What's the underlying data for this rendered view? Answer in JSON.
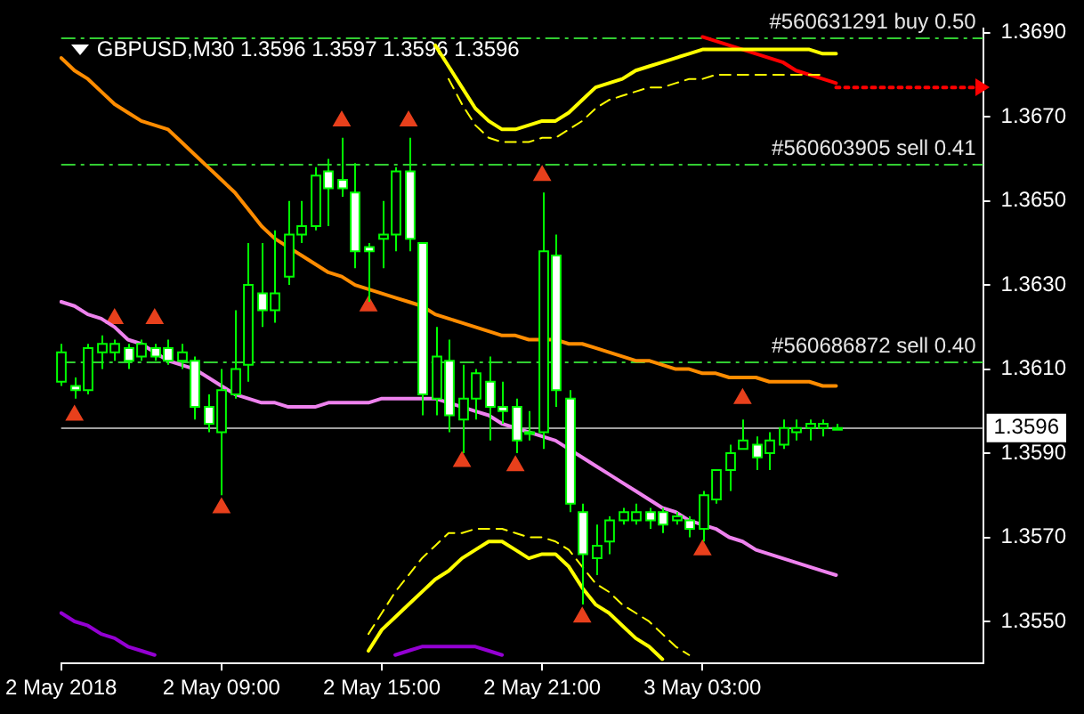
{
  "chart_data": {
    "type": "candlestick",
    "title": "GBPUSD,M30 1.3596 1.3597 1.3596 1.3596",
    "categories": [
      "2 May 2018",
      null,
      null,
      null,
      null,
      null,
      null,
      null,
      null,
      null,
      null,
      null,
      "2 May 09:00",
      null,
      null,
      null,
      null,
      null,
      null,
      null,
      null,
      null,
      null,
      null,
      "2 May 15:00",
      null,
      null,
      null,
      null,
      null,
      null,
      null,
      null,
      null,
      null,
      null,
      "2 May 21:00",
      null,
      null,
      null,
      null,
      null,
      null,
      null,
      null,
      null,
      null,
      null,
      "3 May 03:00",
      null,
      null,
      null,
      null,
      null,
      null,
      null,
      null,
      null,
      null,
      null,
      null,
      null,
      null,
      null,
      null,
      null,
      null,
      null,
      null,
      null
    ],
    "ohlc": [
      [
        1.3607,
        1.3616,
        1.3606,
        1.3614
      ],
      [
        1.3606,
        1.3608,
        1.3603,
        1.3605
      ],
      [
        1.3605,
        1.3616,
        1.3604,
        1.3615
      ],
      [
        1.3614,
        1.3618,
        1.361,
        1.3616
      ],
      [
        1.3614,
        1.3617,
        1.3612,
        1.3616
      ],
      [
        1.3615,
        1.3616,
        1.361,
        1.3612
      ],
      [
        1.3613,
        1.3617,
        1.3612,
        1.3616
      ],
      [
        1.3615,
        1.3616,
        1.3612,
        1.3613
      ],
      [
        1.3615,
        1.3617,
        1.3611,
        1.3612
      ],
      [
        1.3612,
        1.3616,
        1.361,
        1.3614
      ],
      [
        1.3612,
        1.3613,
        1.3598,
        1.3601
      ],
      [
        1.3601,
        1.3604,
        1.3595,
        1.3597
      ],
      [
        1.3595,
        1.361,
        1.358,
        1.3605
      ],
      [
        1.3604,
        1.3624,
        1.3603,
        1.361
      ],
      [
        1.3611,
        1.364,
        1.3607,
        1.363
      ],
      [
        1.3628,
        1.364,
        1.362,
        1.3624
      ],
      [
        1.3624,
        1.3643,
        1.3621,
        1.3628
      ],
      [
        1.3632,
        1.365,
        1.363,
        1.3642
      ],
      [
        1.3642,
        1.365,
        1.364,
        1.3644
      ],
      [
        1.3644,
        1.3658,
        1.3643,
        1.3656
      ],
      [
        1.3657,
        1.366,
        1.3644,
        1.3653
      ],
      [
        1.3655,
        1.3665,
        1.3651,
        1.3653
      ],
      [
        1.3652,
        1.3659,
        1.3634,
        1.3638
      ],
      [
        1.3639,
        1.364,
        1.3626,
        1.3638
      ],
      [
        1.3641,
        1.365,
        1.3634,
        1.3642
      ],
      [
        1.3642,
        1.3658,
        1.3638,
        1.3657
      ],
      [
        1.3657,
        1.3665,
        1.3638,
        1.3641
      ],
      [
        1.364,
        1.364,
        1.3599,
        1.3604
      ],
      [
        1.3603,
        1.362,
        1.3599,
        1.3613
      ],
      [
        1.3612,
        1.3617,
        1.3595,
        1.3599
      ],
      [
        1.3598,
        1.3611,
        1.359,
        1.3603
      ],
      [
        1.3603,
        1.361,
        1.3598,
        1.3609
      ],
      [
        1.3607,
        1.3613,
        1.3593,
        1.3601
      ],
      [
        1.3601,
        1.3607,
        1.3597,
        1.36
      ],
      [
        1.3601,
        1.3603,
        1.359,
        1.3593
      ],
      [
        1.3595,
        1.36,
        1.3593,
        1.3595
      ],
      [
        1.3595,
        1.3652,
        1.3591,
        1.3638
      ],
      [
        1.3637,
        1.3642,
        1.3601,
        1.3605
      ],
      [
        1.3603,
        1.3605,
        1.3576,
        1.3578
      ],
      [
        1.3576,
        1.3578,
        1.3554,
        1.3566
      ],
      [
        1.3565,
        1.3573,
        1.3561,
        1.3568
      ],
      [
        1.3569,
        1.3575,
        1.3566,
        1.3574
      ],
      [
        1.3574,
        1.3577,
        1.3573,
        1.3576
      ],
      [
        1.3574,
        1.3578,
        1.3573,
        1.3576
      ],
      [
        1.3576,
        1.3577,
        1.3572,
        1.3574
      ],
      [
        1.3576,
        1.3577,
        1.3571,
        1.3573
      ],
      [
        1.3574,
        1.3576,
        1.3573,
        1.3575
      ],
      [
        1.3574,
        1.3575,
        1.357,
        1.3572
      ],
      [
        1.3572,
        1.3581,
        1.3569,
        1.358
      ],
      [
        1.3579,
        1.3586,
        1.3578,
        1.3586
      ],
      [
        1.3586,
        1.3592,
        1.3581,
        1.359
      ],
      [
        1.3591,
        1.3598,
        1.3591,
        1.3593
      ],
      [
        1.3592,
        1.3594,
        1.3586,
        1.3589
      ],
      [
        1.359,
        1.3595,
        1.3586,
        1.3593
      ],
      [
        1.3592,
        1.3598,
        1.3591,
        1.3596
      ],
      [
        1.3595,
        1.3598,
        1.3593,
        1.3596
      ],
      [
        1.3596,
        1.3598,
        1.3593,
        1.3597
      ],
      [
        1.3596,
        1.3598,
        1.3594,
        1.3597
      ],
      [
        1.3596,
        1.3597,
        1.3596,
        1.3596
      ],
      null,
      null,
      null,
      null,
      null,
      null,
      null,
      null,
      null,
      null,
      null
    ],
    "series": [
      {
        "type": "line",
        "color": "#ff8c00",
        "values": [
          1.3684,
          1.3681,
          1.3679,
          1.3676,
          1.3673,
          1.3671,
          1.3669,
          1.3668,
          1.3667,
          1.3664,
          1.3661,
          1.3658,
          1.3655,
          1.3652,
          1.3648,
          1.3644,
          1.3641,
          1.3639,
          1.3637,
          1.3635,
          1.3633,
          1.3632,
          1.363,
          1.3629,
          1.3628,
          1.3627,
          1.3626,
          1.3625,
          1.3623,
          1.3622,
          1.3621,
          1.362,
          1.3619,
          1.3618,
          1.3618,
          1.3617,
          1.3617,
          1.3617,
          1.3616,
          1.3616,
          1.3615,
          1.3614,
          1.3613,
          1.3612,
          1.3612,
          1.3611,
          1.361,
          1.361,
          1.3609,
          1.3609,
          1.3608,
          1.3608,
          1.3608,
          1.3607,
          1.3607,
          1.3607,
          1.3607,
          1.3606,
          1.3606,
          null,
          null,
          null,
          null,
          null,
          null,
          null,
          null,
          null,
          null,
          null
        ]
      },
      {
        "type": "line",
        "color": "#ee82ee",
        "values": [
          1.3626,
          1.3625,
          1.3623,
          1.3622,
          1.362,
          1.3617,
          1.3616,
          1.3614,
          1.3612,
          1.3611,
          1.361,
          1.3608,
          1.3606,
          1.3604,
          1.3603,
          1.3602,
          1.3602,
          1.3601,
          1.3601,
          1.3601,
          1.3602,
          1.3602,
          1.3602,
          1.3602,
          1.3603,
          1.3603,
          1.3603,
          1.3603,
          1.3603,
          1.3602,
          1.3601,
          1.36,
          1.3599,
          1.3597,
          1.3596,
          1.3595,
          1.3594,
          1.3593,
          1.3591,
          1.3589,
          1.3587,
          1.3585,
          1.3583,
          1.3581,
          1.3579,
          1.3577,
          1.3576,
          1.3574,
          1.3573,
          1.3572,
          1.357,
          1.3569,
          1.3567,
          1.3566,
          1.3565,
          1.3564,
          1.3563,
          1.3562,
          1.3561,
          null,
          null,
          null,
          null,
          null,
          null,
          null,
          null,
          null,
          null,
          null
        ]
      },
      {
        "type": "line",
        "color": "#ffff00",
        "values": [
          null,
          null,
          null,
          null,
          null,
          null,
          null,
          null,
          null,
          null,
          null,
          null,
          null,
          null,
          null,
          null,
          null,
          null,
          null,
          null,
          null,
          null,
          null,
          null,
          null,
          null,
          null,
          null,
          1.3687,
          1.3682,
          1.3677,
          1.3672,
          1.3669,
          1.3667,
          1.3667,
          1.3668,
          1.3669,
          1.3669,
          1.3671,
          1.3674,
          1.3677,
          1.3678,
          1.3679,
          1.3681,
          1.3682,
          1.3683,
          1.3684,
          1.3685,
          1.3686,
          1.3686,
          1.3686,
          1.3686,
          1.3686,
          1.3686,
          1.3686,
          1.3686,
          1.3686,
          1.3685,
          1.3685,
          null,
          null,
          null,
          null,
          null,
          null,
          null,
          null,
          null,
          null,
          null
        ]
      },
      {
        "type": "line",
        "color": "#ffff00",
        "line_style": "dashed",
        "values": [
          null,
          null,
          null,
          null,
          null,
          null,
          null,
          null,
          null,
          null,
          null,
          null,
          null,
          null,
          null,
          null,
          null,
          null,
          null,
          null,
          null,
          null,
          null,
          null,
          null,
          null,
          null,
          null,
          null,
          1.3679,
          1.3673,
          1.3668,
          1.3665,
          1.3664,
          1.3664,
          1.3664,
          1.3665,
          1.3665,
          1.3667,
          1.3669,
          1.3672,
          1.3674,
          1.3675,
          1.3676,
          1.3677,
          1.3677,
          1.3678,
          1.3679,
          1.3679,
          1.368,
          1.368,
          1.368,
          1.368,
          1.368,
          1.368,
          1.368,
          1.368,
          1.368,
          null,
          null,
          null,
          null,
          null,
          null,
          null,
          null,
          null,
          null,
          null,
          null
        ]
      },
      {
        "type": "line",
        "color": "#ffff00",
        "values": [
          null,
          null,
          null,
          null,
          null,
          null,
          null,
          null,
          null,
          null,
          null,
          null,
          null,
          null,
          null,
          null,
          null,
          null,
          null,
          null,
          null,
          null,
          null,
          1.3543,
          1.3548,
          1.3551,
          1.3554,
          1.3557,
          1.356,
          1.3562,
          1.3565,
          1.3567,
          1.3569,
          1.3569,
          1.3567,
          1.3565,
          1.3566,
          1.3566,
          1.3563,
          1.3558,
          1.3554,
          1.3552,
          1.3549,
          1.3546,
          1.3544,
          1.3541,
          null,
          null,
          null,
          null,
          null,
          null,
          null,
          null,
          null,
          null,
          null,
          null,
          null,
          null,
          null,
          null,
          null,
          null,
          null,
          null,
          null,
          null,
          null,
          null
        ]
      },
      {
        "type": "line",
        "color": "#ffff00",
        "line_style": "dashed",
        "values": [
          null,
          null,
          null,
          null,
          null,
          null,
          null,
          null,
          null,
          null,
          null,
          null,
          null,
          null,
          null,
          null,
          null,
          null,
          null,
          null,
          null,
          null,
          null,
          1.3547,
          1.3552,
          1.3557,
          1.3561,
          1.3565,
          1.3568,
          1.3571,
          1.3571,
          1.3572,
          1.3572,
          1.3572,
          1.3571,
          1.357,
          1.357,
          1.3569,
          1.3567,
          1.3563,
          1.3559,
          1.3557,
          1.3554,
          1.3552,
          1.355,
          1.3547,
          1.3544,
          1.3542,
          null,
          null,
          null,
          null,
          null,
          null,
          null,
          null,
          null,
          null,
          null,
          null,
          null,
          null,
          null,
          null,
          null,
          null,
          null,
          null,
          null,
          null
        ]
      },
      {
        "type": "line",
        "color": "#9400d3",
        "values": [
          1.3552,
          1.355,
          1.3549,
          1.3547,
          1.3546,
          1.3544,
          1.3543,
          1.3542,
          null,
          null,
          null,
          null,
          null,
          null,
          null,
          null,
          null,
          null,
          null,
          null,
          null,
          null,
          null,
          null,
          null,
          1.3542,
          1.3543,
          1.3544,
          1.3544,
          1.3544,
          1.3544,
          1.3544,
          1.3543,
          1.3542,
          null,
          null,
          null,
          null,
          null,
          null,
          null,
          null,
          null,
          null,
          null,
          null,
          null,
          null,
          null,
          null,
          null,
          null,
          null,
          null,
          null,
          null,
          null,
          null,
          null,
          null,
          null,
          null,
          null,
          null,
          null,
          null,
          null,
          null,
          null,
          null
        ]
      },
      {
        "type": "line",
        "color": "#ff0000",
        "values": [
          null,
          null,
          null,
          null,
          null,
          null,
          null,
          null,
          null,
          null,
          null,
          null,
          null,
          null,
          null,
          null,
          null,
          null,
          null,
          null,
          null,
          null,
          null,
          null,
          null,
          null,
          null,
          null,
          null,
          null,
          null,
          null,
          null,
          null,
          null,
          null,
          null,
          null,
          null,
          null,
          null,
          null,
          null,
          null,
          null,
          null,
          null,
          null,
          1.3689,
          1.3688,
          1.3687,
          1.3686,
          1.3685,
          1.3684,
          1.3683,
          1.3681,
          1.368,
          1.3679,
          1.3678,
          null,
          null,
          null,
          null,
          null,
          null,
          null,
          null,
          null,
          null,
          null
        ]
      },
      {
        "type": "line",
        "color": "#ff0000",
        "line_style": "dotted",
        "values": [
          null,
          null,
          null,
          null,
          null,
          null,
          null,
          null,
          null,
          null,
          null,
          null,
          null,
          null,
          null,
          null,
          null,
          null,
          null,
          null,
          null,
          null,
          null,
          null,
          null,
          null,
          null,
          null,
          null,
          null,
          null,
          null,
          null,
          null,
          null,
          null,
          null,
          null,
          null,
          null,
          null,
          null,
          null,
          null,
          null,
          null,
          null,
          null,
          null,
          null,
          null,
          null,
          null,
          null,
          null,
          null,
          null,
          null,
          1.3677,
          1.3677,
          1.3677,
          1.3677,
          1.3677,
          1.3677,
          1.3677,
          1.3677,
          1.3677,
          1.3677,
          1.3677,
          1.3677
        ]
      },
      {
        "type": "scatter",
        "color": "#e8401c",
        "marker": "triangle",
        "values": [
          null,
          null,
          null,
          null,
          1.3622,
          null,
          null,
          1.3622,
          null,
          null,
          null,
          null,
          null,
          null,
          null,
          null,
          null,
          null,
          null,
          null,
          null,
          1.3669,
          null,
          null,
          null,
          null,
          1.3669,
          null,
          null,
          null,
          null,
          null,
          null,
          null,
          null,
          null,
          1.3656,
          null,
          null,
          null,
          null,
          null,
          null,
          null,
          null,
          null,
          null,
          null,
          null,
          null,
          null,
          1.3603,
          null,
          null,
          null,
          null,
          null,
          null,
          null,
          null,
          null,
          null,
          null,
          null,
          null,
          null,
          null,
          null,
          null,
          null
        ]
      },
      {
        "type": "scatter",
        "color": "#e8401c",
        "marker": "triangle",
        "values": [
          null,
          1.3599,
          null,
          null,
          null,
          null,
          null,
          null,
          null,
          null,
          null,
          null,
          1.3577,
          null,
          null,
          null,
          null,
          null,
          null,
          null,
          null,
          null,
          null,
          1.3625,
          null,
          null,
          null,
          null,
          null,
          null,
          1.3588,
          null,
          null,
          null,
          1.3587,
          null,
          null,
          null,
          null,
          1.3551,
          null,
          null,
          null,
          null,
          null,
          null,
          null,
          null,
          1.3567,
          null,
          null,
          null,
          null,
          null,
          null,
          null,
          null,
          null,
          null,
          null,
          null,
          null,
          null,
          null,
          null,
          null,
          null,
          null,
          null,
          null
        ]
      }
    ],
    "ylim": [
      1.354,
      1.3691
    ],
    "yticks": [
      {
        "value": 1.355,
        "label": "1.3550"
      },
      {
        "value": 1.357,
        "label": "1.3570"
      },
      {
        "value": 1.359,
        "label": "1.3590"
      },
      {
        "value": 1.361,
        "label": "1.3610"
      },
      {
        "value": 1.363,
        "label": "1.3630"
      },
      {
        "value": 1.365,
        "label": "1.3650"
      },
      {
        "value": 1.367,
        "label": "1.3670"
      },
      {
        "value": 1.369,
        "label": "1.3690"
      }
    ],
    "ref_lines": [
      {
        "axis": "y",
        "value": 1.3689,
        "label": "#560631291 buy 0.50",
        "color": "#32cd32",
        "line_style": "dashed"
      },
      {
        "axis": "y",
        "value": 1.3659,
        "label": "#560603905 sell 0.41",
        "color": "#32cd32",
        "line_style": "dashed"
      },
      {
        "axis": "y",
        "value": 1.3612,
        "label": "#560686872 sell 0.40",
        "color": "#32cd32",
        "line_style": "dashed"
      },
      {
        "axis": "y",
        "value": 1.3596,
        "label": "1.3596",
        "color": "#a0a0a0",
        "line_style": "solid"
      }
    ]
  }
}
